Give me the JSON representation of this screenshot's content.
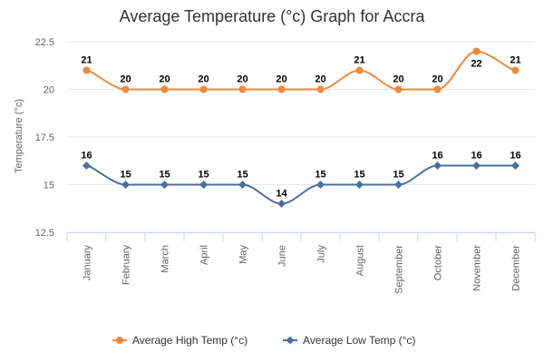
{
  "chart_data": {
    "type": "line",
    "title": "Average Temperature (°c) Graph for Accra",
    "ylabel": "Temperature (°c)",
    "xlabel": "",
    "ylim": [
      12.5,
      22.5
    ],
    "yticks": [
      12.5,
      15,
      17.5,
      20,
      22.5
    ],
    "ytick_labels": [
      "12.5",
      "15",
      "17.5",
      "20",
      "22.5"
    ],
    "grid": true,
    "legend_position": "bottom",
    "categories": [
      "January",
      "February",
      "March",
      "April",
      "May",
      "June",
      "July",
      "August",
      "September",
      "October",
      "November",
      "December"
    ],
    "series": [
      {
        "name": "Average High Temp (°c)",
        "color": "#f0883a",
        "marker": "circle",
        "values": [
          21,
          20,
          20,
          20,
          20,
          20,
          20,
          21,
          20,
          20,
          22,
          21
        ],
        "labels": [
          "21",
          "20",
          "20",
          "20",
          "20",
          "20",
          "20",
          "21",
          "20",
          "20",
          "22",
          "21"
        ]
      },
      {
        "name": "Average Low Temp (°c)",
        "color": "#4a6f9e",
        "marker": "diamond",
        "values": [
          16,
          15,
          15,
          15,
          15,
          14,
          15,
          15,
          15,
          16,
          16,
          16
        ],
        "labels": [
          "16",
          "15",
          "15",
          "15",
          "15",
          "14",
          "15",
          "15",
          "15",
          "16",
          "16",
          "16"
        ]
      }
    ]
  }
}
